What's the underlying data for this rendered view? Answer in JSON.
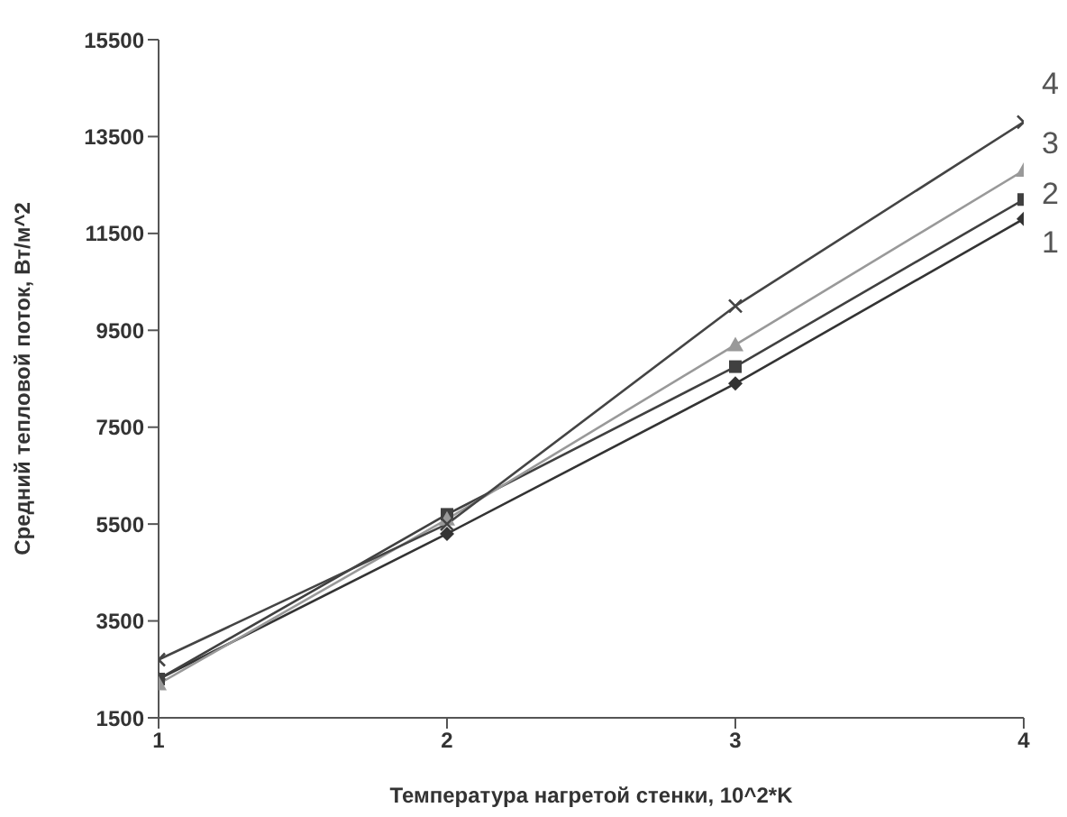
{
  "chart_data": {
    "type": "line",
    "xlabel": "Температура нагретой стенки, 10^2*K",
    "ylabel": "Средний тепловой поток, Вт/м^2",
    "x": [
      1,
      2,
      3,
      4
    ],
    "xlim": [
      1,
      4
    ],
    "xticks": [
      1,
      2,
      3,
      4
    ],
    "ylim": [
      1500,
      15500
    ],
    "yticks": [
      1500,
      3500,
      5500,
      7500,
      9500,
      11500,
      13500,
      15500
    ],
    "grid": false,
    "legend": false,
    "series": [
      {
        "name": "1",
        "color": "#333333",
        "marker": "diamond",
        "values": [
          2300,
          5300,
          8400,
          11800
        ]
      },
      {
        "name": "2",
        "color": "#404040",
        "marker": "square",
        "values": [
          2300,
          5700,
          8750,
          12200
        ]
      },
      {
        "name": "3",
        "color": "#999999",
        "marker": "triangle",
        "values": [
          2200,
          5600,
          9200,
          12800
        ]
      },
      {
        "name": "4",
        "color": "#444444",
        "marker": "cross",
        "values": [
          2700,
          5500,
          10000,
          13800
        ]
      }
    ]
  }
}
